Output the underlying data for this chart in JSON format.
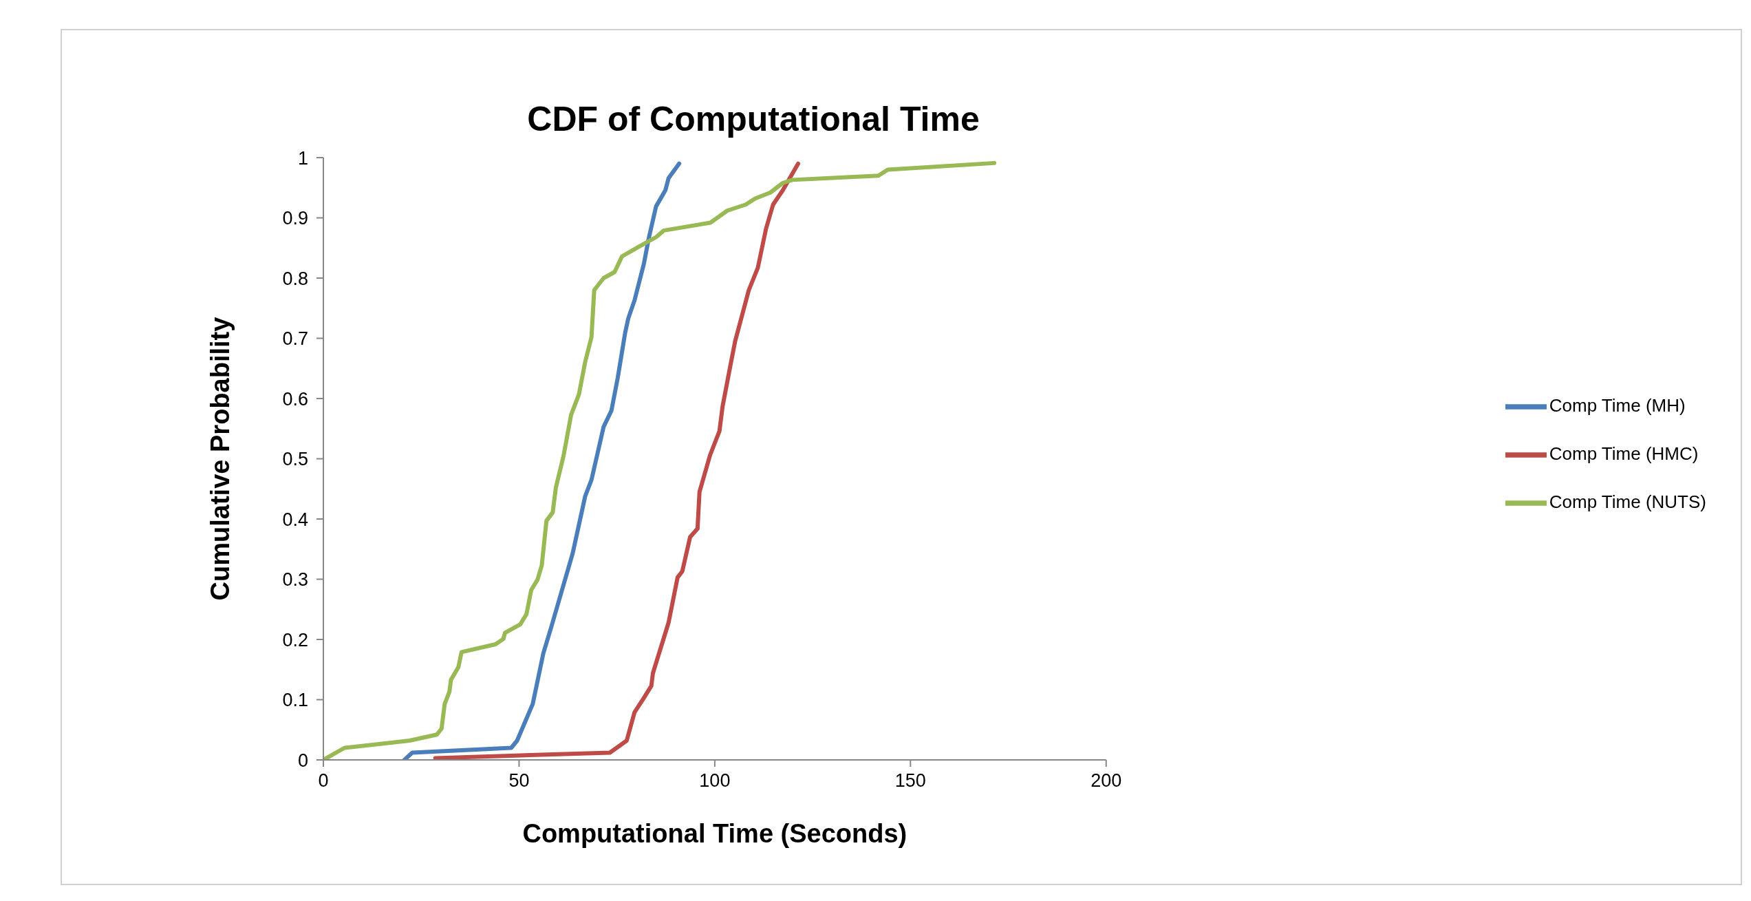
{
  "chart_data": {
    "type": "line",
    "title": "CDF of Computational Time",
    "xlabel": "Computational Time (Seconds)",
    "ylabel": "Cumulative Probability",
    "xlim": [
      0,
      200
    ],
    "xticks": [
      0,
      50,
      100,
      150,
      200
    ],
    "ylim": [
      0,
      1
    ],
    "yticks": [
      0,
      0.1,
      0.2,
      0.3,
      0.4,
      0.5,
      0.6,
      0.7,
      0.8,
      0.9,
      1
    ],
    "grid": false,
    "legend": "right",
    "marker": "none",
    "line_style": "solid",
    "series": [
      {
        "name": "Comp Time (MH)",
        "color": "#4a7ebb",
        "x": [
          20.7,
          22.7,
          48,
          49.5,
          53.5,
          56.2,
          58.2,
          63.7,
          66.9,
          68.5,
          71.6,
          73.6,
          75.2,
          77.1,
          77.9,
          79.5,
          81.9,
          83.1,
          85,
          87.4,
          88.2,
          90.9
        ],
        "values": [
          0,
          0.012,
          0.02,
          0.032,
          0.093,
          0.177,
          0.22,
          0.343,
          0.438,
          0.465,
          0.553,
          0.58,
          0.634,
          0.709,
          0.733,
          0.763,
          0.824,
          0.865,
          0.919,
          0.946,
          0.966,
          0.99
        ]
      },
      {
        "name": "Comp Time (HMC)",
        "color": "#be4b48",
        "x": [
          28.6,
          73.2,
          77.5,
          79.5,
          81.9,
          83.8,
          84.2,
          88.2,
          90.5,
          91.7,
          93.7,
          95.6,
          96.1,
          98.8,
          101.2,
          102,
          104,
          105.2,
          108.7,
          111,
          113.1,
          114.9,
          117.4,
          121.3
        ],
        "values": [
          0.003,
          0.012,
          0.032,
          0.079,
          0.103,
          0.123,
          0.144,
          0.228,
          0.303,
          0.313,
          0.37,
          0.384,
          0.445,
          0.506,
          0.546,
          0.587,
          0.655,
          0.695,
          0.78,
          0.817,
          0.882,
          0.922,
          0.946,
          0.99
        ]
      },
      {
        "name": "Comp Time (NUTS)",
        "color": "#98b954",
        "x": [
          0,
          5.4,
          22,
          29,
          30.2,
          31,
          32.2,
          32.6,
          34.5,
          35.3,
          44,
          46,
          46.4,
          50.3,
          51.9,
          53.1,
          54.7,
          55.8,
          57,
          58.6,
          59.4,
          61.4,
          63.3,
          65.3,
          66.9,
          68.5,
          69.2,
          71.6,
          74.4,
          76.3,
          80.3,
          85,
          87,
          98.9,
          103.2,
          107.9,
          110.3,
          114.2,
          117.4,
          119.8,
          141.8,
          144.2,
          171.4
        ],
        "values": [
          0,
          0.02,
          0.032,
          0.042,
          0.052,
          0.093,
          0.113,
          0.133,
          0.154,
          0.179,
          0.192,
          0.201,
          0.211,
          0.225,
          0.242,
          0.282,
          0.299,
          0.323,
          0.397,
          0.411,
          0.452,
          0.506,
          0.573,
          0.607,
          0.661,
          0.702,
          0.78,
          0.8,
          0.81,
          0.836,
          0.851,
          0.868,
          0.879,
          0.892,
          0.912,
          0.922,
          0.932,
          0.942,
          0.958,
          0.963,
          0.97,
          0.98,
          0.991
        ]
      }
    ]
  }
}
